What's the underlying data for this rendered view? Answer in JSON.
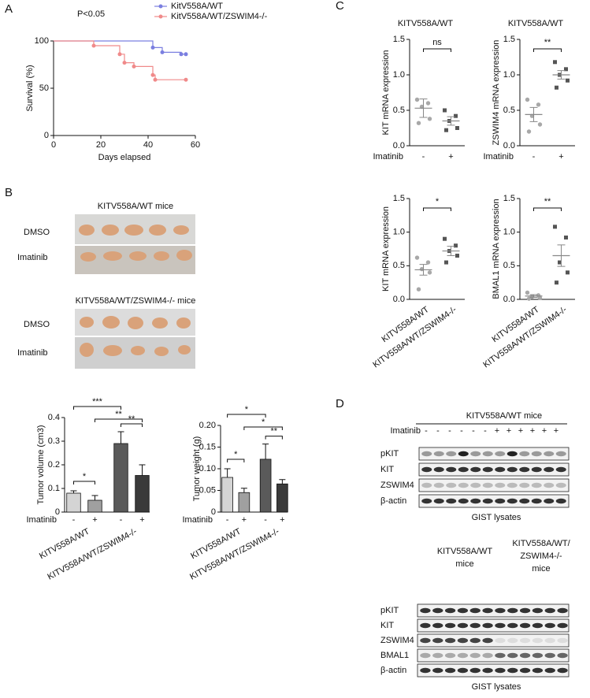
{
  "panel_labels": [
    "A",
    "B",
    "C",
    "D"
  ],
  "chart_data": [
    {
      "type": "line",
      "annotation": "P<0.05",
      "xlabel": "Days elapsed",
      "ylabel": "Survival (%)",
      "xlim": [
        0,
        60
      ],
      "xticks": [
        0,
        20,
        40,
        60
      ],
      "ylim": [
        0,
        100
      ],
      "yticks": [
        0,
        50,
        100
      ],
      "series": [
        {
          "name": "KitV558A/WT",
          "color": "#7b7fe0",
          "x": [
            0,
            42,
            46,
            54,
            56
          ],
          "values": [
            100,
            93,
            88,
            86,
            86
          ]
        },
        {
          "name": "KitV558A/WT/ZSWIM4-/-",
          "color": "#f08a8a",
          "x": [
            0,
            17,
            28,
            30,
            34,
            42,
            43,
            56
          ],
          "values": [
            100,
            95,
            86,
            77,
            73,
            64,
            59,
            59
          ]
        }
      ]
    },
    {
      "type": "bar",
      "ylabel": "Tumor volume (cm3)",
      "xlabel": "Imatinib",
      "categories": [
        "-",
        "+",
        "-",
        "+"
      ],
      "groups": [
        "KITV558A/WT",
        "KITV558A/WT/ZSWIM4-/-"
      ],
      "values": [
        0.08,
        0.05,
        0.29,
        0.155
      ],
      "errors": [
        0.01,
        0.02,
        0.05,
        0.045
      ],
      "colors": [
        "#d4d4d4",
        "#a0a0a0",
        "#5a5a5a",
        "#3a3a3a"
      ],
      "ylim": [
        0,
        0.4
      ],
      "yticks": [
        0,
        0.1,
        0.2,
        0.3,
        0.4
      ],
      "annotations": [
        {
          "text": "***",
          "between": [
            0,
            2
          ]
        },
        {
          "text": "**",
          "between": [
            1,
            3
          ]
        },
        {
          "text": "**",
          "between": [
            2,
            3
          ]
        },
        {
          "text": "*",
          "between": [
            0,
            1
          ]
        }
      ]
    },
    {
      "type": "bar",
      "ylabel": "Tumor weight (g)",
      "xlabel": "Imatinib",
      "categories": [
        "-",
        "+",
        "-",
        "+"
      ],
      "groups": [
        "KITV558A/WT",
        "KITV558A/WT/ZSWIM4-/-"
      ],
      "values": [
        0.08,
        0.045,
        0.122,
        0.065
      ],
      "errors": [
        0.02,
        0.01,
        0.035,
        0.01
      ],
      "colors": [
        "#d4d4d4",
        "#a0a0a0",
        "#5a5a5a",
        "#3a3a3a"
      ],
      "ylim": [
        0,
        0.2
      ],
      "yticks": [
        0,
        0.05,
        {
          "value": 0.1,
          "label": "0.10"
        },
        0.15,
        {
          "value": 0.2,
          "label": "0.20"
        }
      ],
      "annotations": [
        {
          "text": "*",
          "between": [
            0,
            2
          ]
        },
        {
          "text": "*",
          "between": [
            1,
            3
          ]
        },
        {
          "text": "**",
          "between": [
            2,
            3
          ]
        },
        {
          "text": "*",
          "between": [
            0,
            1
          ]
        }
      ]
    },
    {
      "type": "scatter",
      "title": "KITV558A/WT",
      "ylabel": "KIT mRNA expression",
      "xlabel": "Imatinib",
      "categories": [
        "-",
        "+"
      ],
      "ylim": [
        0,
        1.5
      ],
      "yticks": [
        {
          "value": 0,
          "label": "0.0"
        },
        0.5,
        {
          "value": 1,
          "label": "1.0"
        },
        1.5
      ],
      "series": [
        {
          "color": "#a8a8a8",
          "marker": "circle",
          "values": [
            0.65,
            0.6,
            0.55,
            0.38,
            0.32
          ],
          "mean": 0.53,
          "sem": 0.13
        },
        {
          "color": "#555555",
          "marker": "square",
          "values": [
            0.5,
            0.42,
            0.35,
            0.25,
            0.22
          ],
          "mean": 0.35,
          "sem": 0.06
        }
      ],
      "annotations": [
        {
          "text": "ns",
          "between": [
            0,
            1
          ]
        }
      ]
    },
    {
      "type": "scatter",
      "title": "KITV558A/WT",
      "ylabel": "ZSWIM4 mRNA expression",
      "xlabel": "Imatinib",
      "categories": [
        "-",
        "+"
      ],
      "ylim": [
        0,
        1.5
      ],
      "yticks": [
        {
          "value": 0,
          "label": "0.0"
        },
        0.5,
        {
          "value": 1,
          "label": "1.0"
        },
        1.5
      ],
      "series": [
        {
          "color": "#a8a8a8",
          "marker": "circle",
          "values": [
            0.65,
            0.58,
            0.42,
            0.3,
            0.2
          ],
          "mean": 0.44,
          "sem": 0.1
        },
        {
          "color": "#555555",
          "marker": "square",
          "values": [
            1.18,
            1.08,
            1.0,
            0.92,
            0.82
          ],
          "mean": 1.0,
          "sem": 0.06
        }
      ],
      "annotations": [
        {
          "text": "**",
          "between": [
            0,
            1
          ]
        }
      ]
    },
    {
      "type": "scatter",
      "ylabel": "KIT mRNA expression",
      "categories": [
        "KITV558A/WT",
        "KITV558A/WT/ZSWIM4-/-"
      ],
      "ylim": [
        0,
        1.5
      ],
      "yticks": [
        {
          "value": 0,
          "label": "0.0"
        },
        0.5,
        {
          "value": 1,
          "label": "1.0"
        },
        1.5
      ],
      "series": [
        {
          "color": "#a8a8a8",
          "marker": "circle",
          "values": [
            0.62,
            0.55,
            0.45,
            0.4,
            0.15
          ],
          "mean": 0.44,
          "sem": 0.08
        },
        {
          "color": "#555555",
          "marker": "square",
          "values": [
            0.9,
            0.8,
            0.72,
            0.65,
            0.55
          ],
          "mean": 0.72,
          "sem": 0.07
        }
      ],
      "annotations": [
        {
          "text": "*",
          "between": [
            0,
            1
          ]
        }
      ]
    },
    {
      "type": "scatter",
      "ylabel": "BMAL1 mRNA expression",
      "categories": [
        "KITV558A/WT",
        "KITV558A/WT/ZSWIM4-/-"
      ],
      "ylim": [
        0,
        1.5
      ],
      "yticks": [
        {
          "value": 0,
          "label": "0.0"
        },
        0.5,
        {
          "value": 1,
          "label": "1.0"
        },
        1.5
      ],
      "series": [
        {
          "color": "#a8a8a8",
          "marker": "circle",
          "values": [
            0.1,
            0.06,
            0.04,
            0.02,
            0.01
          ],
          "mean": 0.05,
          "sem": 0.02
        },
        {
          "color": "#555555",
          "marker": "square",
          "values": [
            1.08,
            0.92,
            0.55,
            0.4,
            0.25
          ],
          "mean": 0.65,
          "sem": 0.16
        }
      ],
      "annotations": [
        {
          "text": "**",
          "between": [
            0,
            1
          ]
        }
      ]
    }
  ],
  "photos": {
    "groups": [
      "KITV558A/WT mice",
      "KITV558A/WT/ZSWIM4-/- mice"
    ],
    "rows": [
      "DMSO",
      "Imatinib"
    ]
  },
  "blot_top": {
    "title": "KITV558A/WT mice",
    "row_label": "Imatinib",
    "lanes": [
      "-",
      "-",
      "-",
      "-",
      "-",
      "-",
      "+",
      "+",
      "+",
      "+",
      "+",
      "+"
    ],
    "rows": [
      "pKIT",
      "KIT",
      "ZSWIM4",
      "β-actin"
    ],
    "footer": "GIST lysates"
  },
  "blot_bottom": {
    "groups": [
      [
        "KITV558A/WT",
        "mice"
      ],
      [
        "KITV558A/WT/",
        "ZSWIM4-/-",
        "mice"
      ]
    ],
    "rows": [
      "pKIT",
      "KIT",
      "ZSWIM4",
      "BMAL1",
      "β-actin"
    ],
    "footer": "GIST lysates"
  }
}
